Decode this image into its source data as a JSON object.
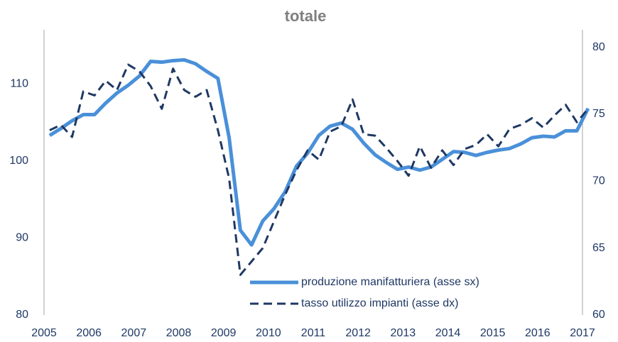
{
  "chart_data": {
    "type": "line",
    "title": "totale",
    "x": [
      2005.125,
      2005.375,
      2005.625,
      2005.875,
      2006.125,
      2006.375,
      2006.625,
      2006.875,
      2007.125,
      2007.375,
      2007.625,
      2007.875,
      2008.125,
      2008.375,
      2008.625,
      2008.875,
      2009.125,
      2009.375,
      2009.625,
      2009.875,
      2010.125,
      2010.375,
      2010.625,
      2010.875,
      2011.125,
      2011.375,
      2011.625,
      2011.875,
      2012.125,
      2012.375,
      2012.625,
      2012.875,
      2013.125,
      2013.375,
      2013.625,
      2013.875,
      2014.125,
      2014.375,
      2014.625,
      2014.875,
      2015.125,
      2015.375,
      2015.625,
      2015.875,
      2016.125,
      2016.375,
      2016.625,
      2016.875,
      2017.125
    ],
    "series": [
      {
        "name": "produzione manifatturiera (asse sx)",
        "color": "#4a90d9",
        "dash": false,
        "values": [
          103.3,
          104.2,
          105.2,
          106.0,
          106.0,
          107.5,
          108.8,
          109.8,
          111.0,
          112.9,
          112.8,
          113.0,
          113.1,
          112.6,
          111.6,
          110.7,
          103.0,
          91.0,
          89.1,
          92.2,
          93.8,
          96.0,
          99.3,
          101.0,
          103.3,
          104.5,
          104.9,
          104.1,
          102.3,
          100.8,
          99.8,
          98.9,
          99.2,
          98.8,
          99.2,
          100.2,
          101.2,
          101.1,
          100.7,
          101.1,
          101.4,
          101.6,
          102.2,
          103.0,
          103.2,
          103.1,
          103.9,
          103.9,
          106.8
        ]
      },
      {
        "name": "tasso utilizzo impianti (asse dx)",
        "color": "#1f3864",
        "dash": true,
        "axis": "y2",
        "values": [
          73.8,
          74.2,
          73.3,
          76.7,
          76.4,
          77.5,
          76.8,
          78.7,
          78.2,
          77.1,
          75.4,
          78.4,
          76.8,
          76.3,
          76.8,
          73.8,
          70.2,
          63.0,
          64.0,
          65.0,
          67.0,
          69.0,
          70.8,
          72.3,
          71.6,
          73.7,
          74.1,
          76.1,
          73.5,
          73.4,
          72.5,
          71.5,
          70.4,
          72.6,
          71.0,
          72.3,
          71.2,
          72.4,
          72.7,
          73.5,
          72.6,
          73.9,
          74.2,
          74.7,
          74.0,
          74.9,
          75.7,
          74.4,
          75.4
        ]
      }
    ],
    "xlim": [
      2005,
      2017
    ],
    "xticks": [
      2005,
      2006,
      2007,
      2008,
      2009,
      2010,
      2011,
      2012,
      2013,
      2014,
      2015,
      2016,
      2017
    ],
    "ylim": [
      80,
      117
    ],
    "yticks": [
      80,
      90,
      100,
      110
    ],
    "y2lim": [
      60,
      81.3
    ],
    "y2ticks": [
      60,
      65,
      70,
      75,
      80
    ],
    "legend": "lower right"
  }
}
